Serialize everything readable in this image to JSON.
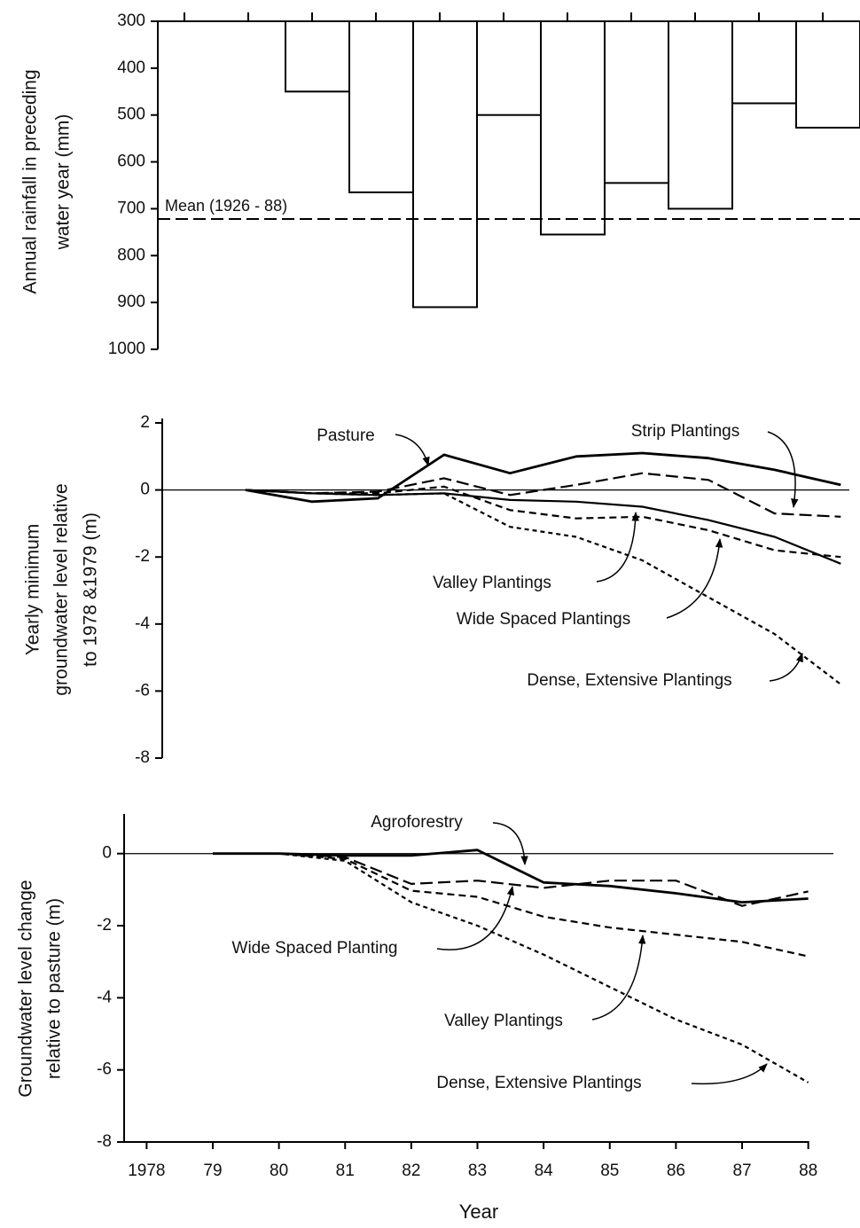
{
  "chart_data": [
    {
      "type": "bar",
      "ylabel": [
        "Annual rainfall in preceding",
        "water year (mm)"
      ],
      "categories": [
        null,
        null,
        null,
        null,
        null,
        null,
        null,
        null,
        null,
        null,
        null
      ],
      "values": [
        null,
        null,
        450,
        665,
        910,
        500,
        755,
        645,
        700,
        475,
        527
      ],
      "color": "#ffffff",
      "ylim": [
        300,
        1000
      ],
      "yticks": [
        300,
        400,
        500,
        600,
        700,
        800,
        900,
        1000
      ],
      "inverted": true,
      "mean": {
        "label": "Mean (1926 - 88)",
        "value": 722
      }
    },
    {
      "type": "line",
      "ylabel": [
        "Yearly minimum",
        "groundwater level relative",
        "to 1978 &1979 (m)"
      ],
      "x": [
        1979.5,
        1980.5,
        1981.5,
        1982.5,
        1983.5,
        1984.5,
        1985.5,
        1986.5,
        1987.5,
        1988.5
      ],
      "series": [
        {
          "name": "Pasture",
          "color": "#000000",
          "style": "solid",
          "values": [
            0,
            -0.35,
            -0.25,
            1.05,
            0.5,
            1.0,
            1.1,
            0.95,
            0.6,
            0.15
          ]
        },
        {
          "name": "Strip Plantings",
          "color": "#000000",
          "style": "long-dash",
          "values": [
            0,
            -0.1,
            -0.05,
            0.35,
            -0.15,
            0.15,
            0.5,
            0.3,
            -0.7,
            -0.8
          ]
        },
        {
          "name": "Valley Plantings",
          "color": "#000000",
          "style": "dash",
          "values": [
            0,
            -0.1,
            -0.1,
            0.1,
            -0.6,
            -0.85,
            -0.8,
            -1.2,
            -1.8,
            -2.0
          ]
        },
        {
          "name": "Wide Spaced Plantings",
          "color": "#000000",
          "style": "solid-thin",
          "values": [
            0,
            -0.1,
            -0.15,
            -0.1,
            -0.3,
            -0.35,
            -0.5,
            -0.9,
            -1.4,
            -2.2
          ]
        },
        {
          "name": "Dense, Extensive Plantings",
          "color": "#000000",
          "style": "short-dash",
          "values": [
            0,
            -0.1,
            -0.15,
            -0.1,
            -1.1,
            -1.4,
            -2.1,
            -3.2,
            -4.3,
            -5.8
          ]
        }
      ],
      "xlim": [
        1978.24,
        1988.63
      ],
      "ylim": [
        -8,
        2
      ],
      "yticks": [
        2,
        0,
        -2,
        -4,
        -6,
        -8
      ]
    },
    {
      "type": "line",
      "ylabel": [
        "Groundwater level change",
        "relative to pasture (m)"
      ],
      "xlabel": "Year",
      "x": [
        1979,
        1980,
        1981,
        1982,
        1983,
        1984,
        1985,
        1986,
        1987,
        1988
      ],
      "series": [
        {
          "name": "Agroforestry",
          "color": "#000000",
          "style": "solid",
          "values": [
            0,
            0,
            -0.05,
            -0.05,
            0.1,
            -0.8,
            -0.9,
            -1.1,
            -1.35,
            -1.25
          ]
        },
        {
          "name": "Wide Spaced Planting",
          "color": "#000000",
          "style": "long-dash",
          "values": [
            0,
            0,
            -0.1,
            -0.84,
            -0.75,
            -0.95,
            -0.75,
            -0.75,
            -1.45,
            -1.05
          ]
        },
        {
          "name": "Valley Plantings",
          "color": "#000000",
          "style": "dash",
          "values": [
            0,
            0,
            -0.15,
            -1.03,
            -1.2,
            -1.75,
            -2.05,
            -2.25,
            -2.45,
            -2.85
          ]
        },
        {
          "name": "Dense, Extensive Plantings",
          "color": "#000000",
          "style": "short-dash",
          "values": [
            0,
            0,
            -0.2,
            -1.35,
            -2.0,
            -2.8,
            -3.7,
            -4.6,
            -5.3,
            -6.35
          ]
        }
      ],
      "xlim": [
        1977.66,
        1988.38
      ],
      "ylim": [
        -8,
        1.1
      ],
      "xticks": [
        1978,
        {
          "value": 1979,
          "label": "79"
        },
        {
          "value": 1980,
          "label": "80"
        },
        {
          "value": 1981,
          "label": "81"
        },
        {
          "value": 1982,
          "label": "82"
        },
        {
          "value": 1983,
          "label": "83"
        },
        {
          "value": 1984,
          "label": "84"
        },
        {
          "value": 1985,
          "label": "85"
        },
        {
          "value": 1986,
          "label": "86"
        },
        {
          "value": 1987,
          "label": "87"
        },
        {
          "value": 1988,
          "label": "88"
        }
      ],
      "yticks": [
        0,
        -2,
        -4,
        -6,
        -8
      ]
    }
  ]
}
